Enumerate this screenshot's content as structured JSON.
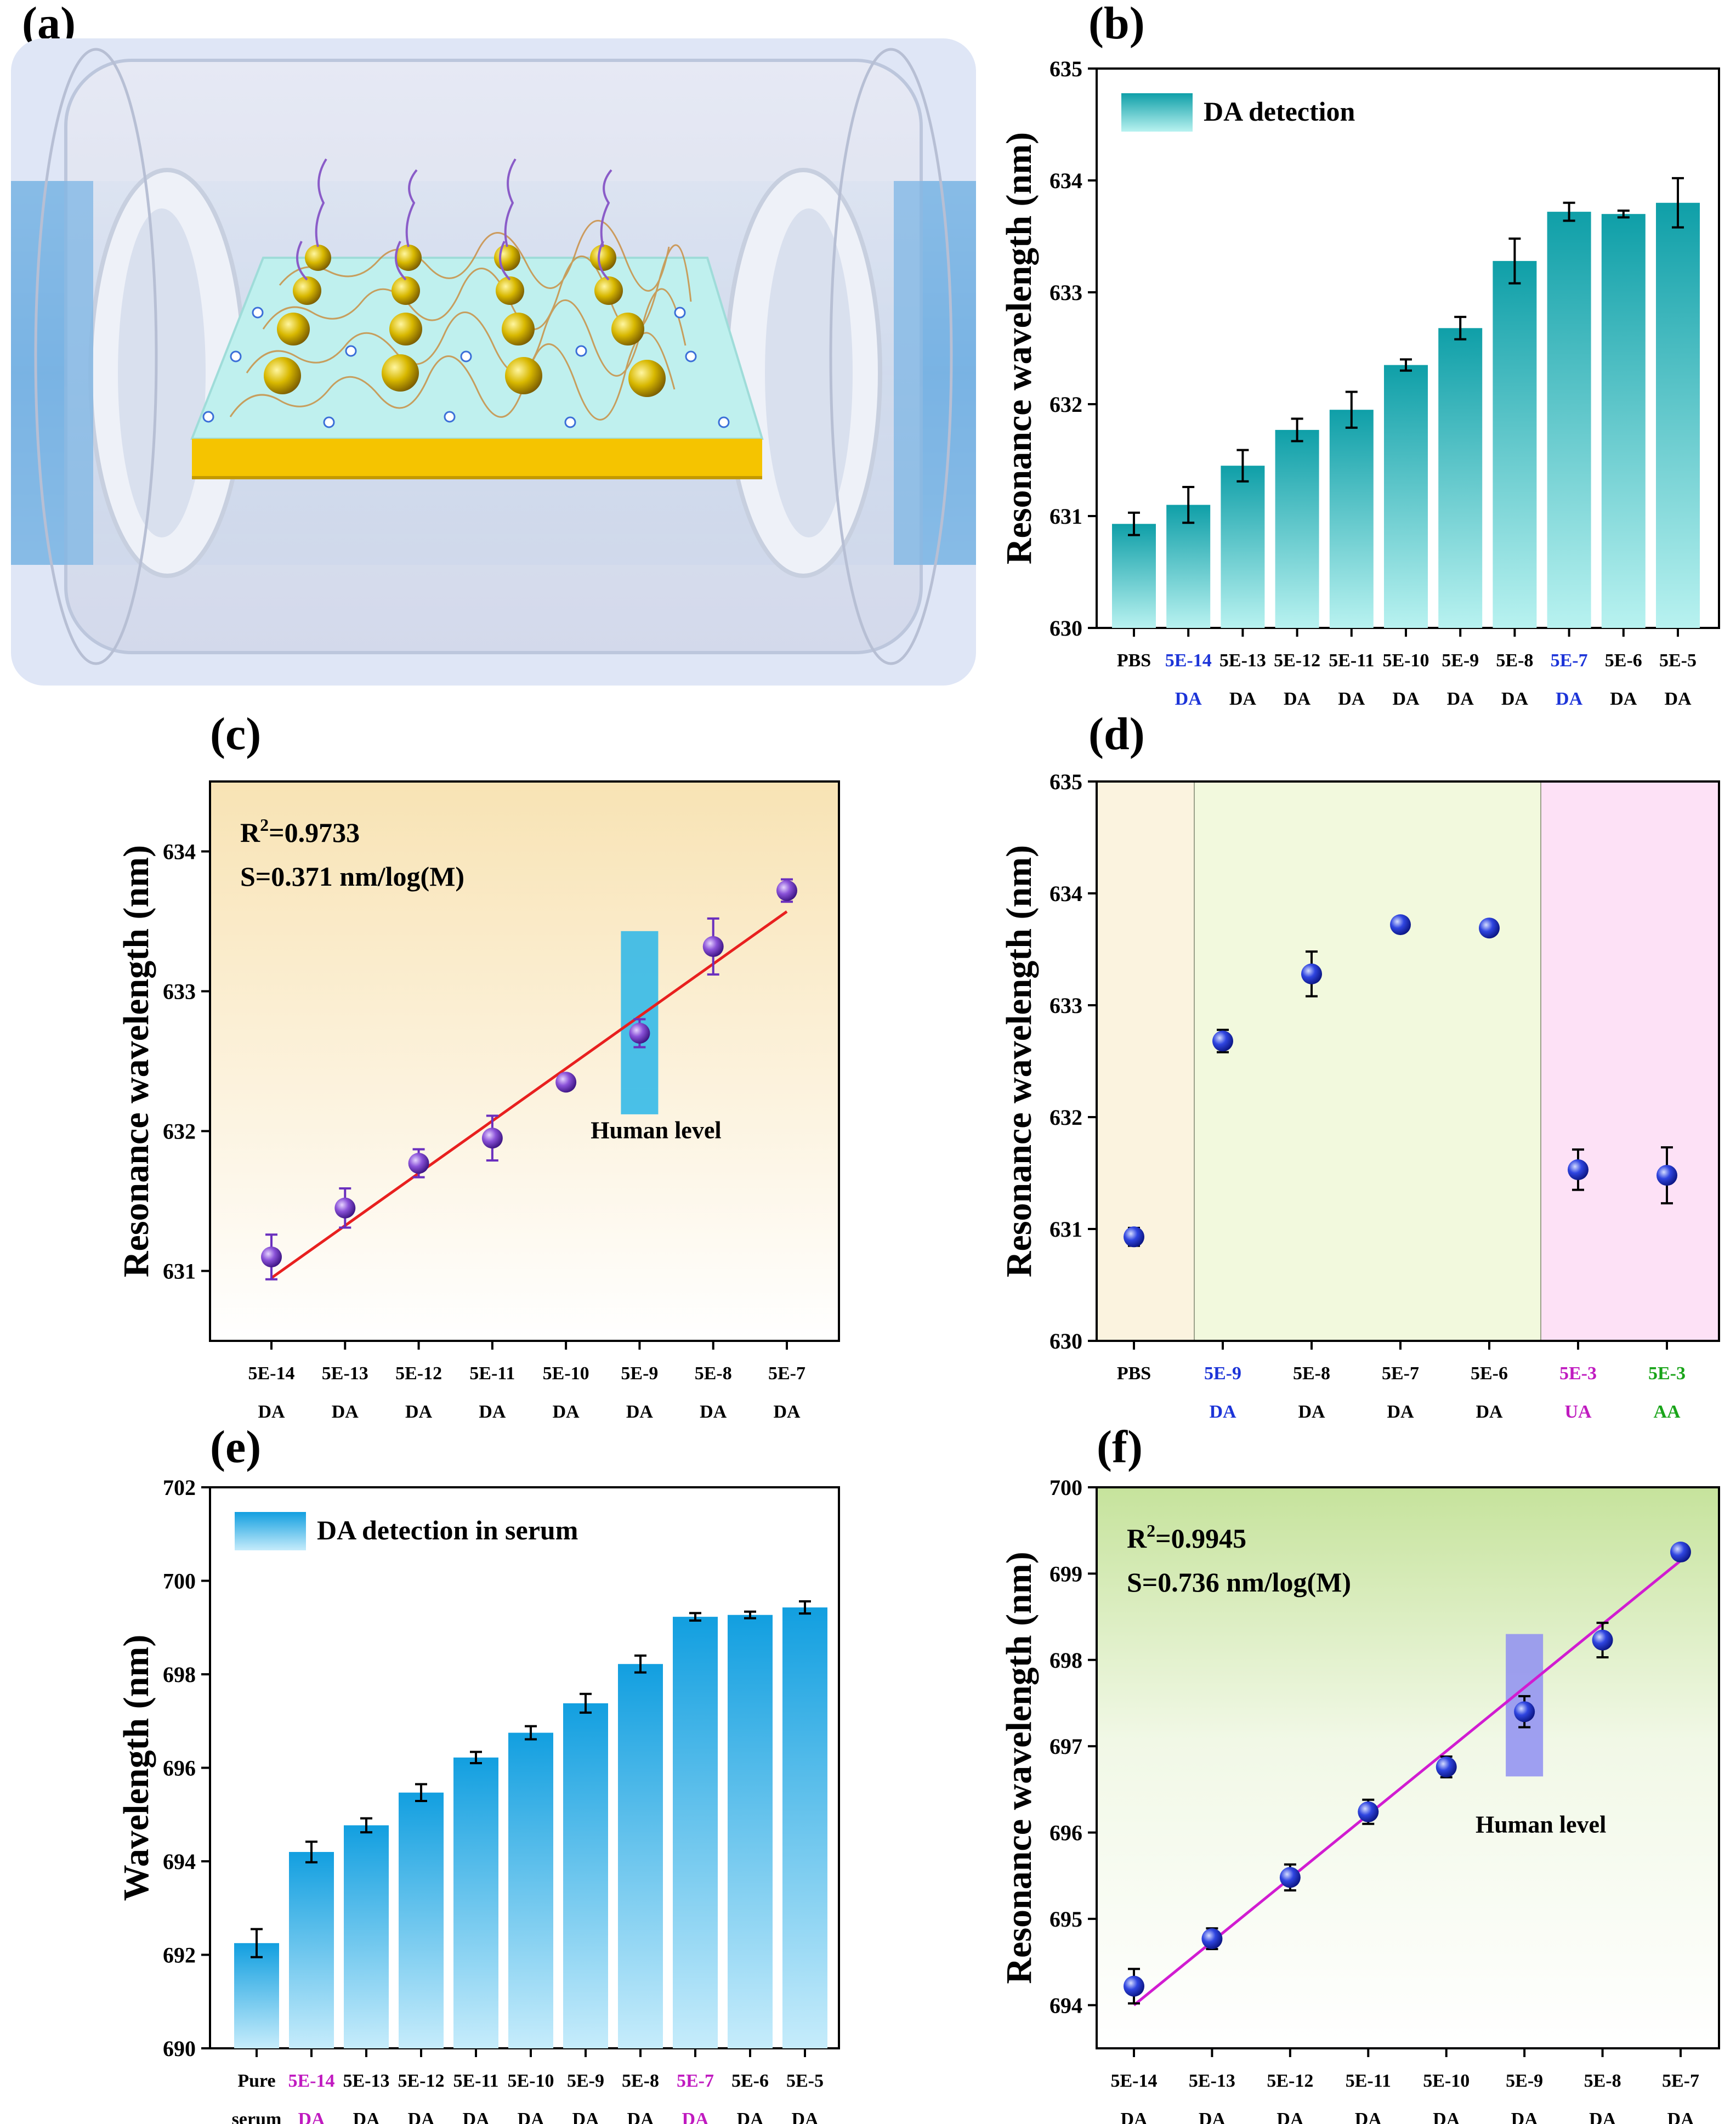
{
  "panels": {
    "a": "(a)",
    "b": "(b)",
    "c": "(c)",
    "d": "(d)",
    "e": "(e)",
    "f": "(f)"
  },
  "colors": {
    "bar_b": "#1aaeb4",
    "bar_e": "#1ea8e3",
    "marker_c": "#6a2fbe",
    "marker_d": "#1a2fd6",
    "fit_c": "#e8201f",
    "fit_f": "#d11cd1",
    "blue_label": "#1c34d8",
    "magenta_label": "#c01bc0",
    "green_label": "#19a419",
    "human_box_c": "#29b6e9",
    "human_box_f": "#8f8ff2"
  },
  "chart_data": [
    {
      "id": "b",
      "type": "bar",
      "ylabel": "Resonance wavelength (nm)",
      "legend": "DA detection",
      "ylim": [
        630,
        635
      ],
      "yticks": [
        "630",
        "631",
        "632",
        "633",
        "634",
        "635"
      ],
      "categories": [
        {
          "line1": "PBS",
          "line2": "",
          "color": "black"
        },
        {
          "line1": "5E-14",
          "line2": "DA",
          "color": "blue"
        },
        {
          "line1": "5E-13",
          "line2": "DA",
          "color": "black"
        },
        {
          "line1": "5E-12",
          "line2": "DA",
          "color": "black"
        },
        {
          "line1": "5E-11",
          "line2": "DA",
          "color": "black"
        },
        {
          "line1": "5E-10",
          "line2": "DA",
          "color": "black"
        },
        {
          "line1": "5E-9",
          "line2": "DA",
          "color": "black"
        },
        {
          "line1": "5E-8",
          "line2": "DA",
          "color": "black"
        },
        {
          "line1": "5E-7",
          "line2": "DA",
          "color": "blue"
        },
        {
          "line1": "5E-6",
          "line2": "DA",
          "color": "black"
        },
        {
          "line1": "5E-5",
          "line2": "DA",
          "color": "black"
        }
      ],
      "values": [
        630.93,
        631.1,
        631.45,
        631.77,
        631.95,
        632.35,
        632.68,
        633.28,
        633.72,
        633.7,
        633.8
      ],
      "errors": [
        0.1,
        0.16,
        0.14,
        0.1,
        0.16,
        0.05,
        0.1,
        0.2,
        0.08,
        0.03,
        0.22
      ]
    },
    {
      "id": "c",
      "type": "scatter",
      "ylabel": "Resonance wavelength (nm)",
      "ylim": [
        630.5,
        634.5
      ],
      "yticks": [
        "631",
        "632",
        "633",
        "634"
      ],
      "ytick_values": [
        631,
        632,
        633,
        634
      ],
      "categories": [
        {
          "line1": "5E-14",
          "line2": "DA",
          "color": "black"
        },
        {
          "line1": "5E-13",
          "line2": "DA",
          "color": "black"
        },
        {
          "line1": "5E-12",
          "line2": "DA",
          "color": "black"
        },
        {
          "line1": "5E-11",
          "line2": "DA",
          "color": "black"
        },
        {
          "line1": "5E-10",
          "line2": "DA",
          "color": "black"
        },
        {
          "line1": "5E-9",
          "line2": "DA",
          "color": "black"
        },
        {
          "line1": "5E-8",
          "line2": "DA",
          "color": "black"
        },
        {
          "line1": "5E-7",
          "line2": "DA",
          "color": "black"
        }
      ],
      "values": [
        631.1,
        631.45,
        631.77,
        631.95,
        632.35,
        632.7,
        633.32,
        633.72
      ],
      "errors": [
        0.16,
        0.14,
        0.1,
        0.16,
        0.05,
        0.1,
        0.2,
        0.08
      ],
      "fit": [
        630.95,
        633.57
      ],
      "r2_prefix": "R",
      "r2_sup": "2",
      "r2_value": "=0.9733",
      "slope": "S=0.371 nm/log(M)",
      "annotation": "Human level",
      "human_box_index": 5,
      "human_box_range": [
        632.12,
        633.43
      ]
    },
    {
      "id": "d",
      "type": "scatter",
      "ylabel": "Resonance wavelength (nm)",
      "ylim": [
        630,
        635
      ],
      "yticks": [
        "630",
        "631",
        "632",
        "633",
        "634",
        "635"
      ],
      "categories": [
        {
          "line1": "PBS",
          "line2": "",
          "color": "black"
        },
        {
          "line1": "5E-9",
          "line2": "DA",
          "color": "blue"
        },
        {
          "line1": "5E-8",
          "line2": "DA",
          "color": "black"
        },
        {
          "line1": "5E-7",
          "line2": "DA",
          "color": "black"
        },
        {
          "line1": "5E-6",
          "line2": "DA",
          "color": "black"
        },
        {
          "line1": "5E-3",
          "line2": "UA",
          "color": "magenta"
        },
        {
          "line1": "5E-3",
          "line2": "AA",
          "color": "green"
        }
      ],
      "values": [
        630.93,
        632.68,
        633.28,
        633.72,
        633.69,
        631.53,
        631.48
      ],
      "errors": [
        0.08,
        0.1,
        0.2,
        0.06,
        0.05,
        0.18,
        0.25
      ]
    },
    {
      "id": "e",
      "type": "bar",
      "ylabel": "Wavelength (nm)",
      "legend": "DA detection in serum",
      "ylim": [
        690,
        702
      ],
      "yticks": [
        "690",
        "692",
        "694",
        "696",
        "698",
        "700",
        "702"
      ],
      "categories": [
        {
          "line1": "Pure",
          "line2": "serum",
          "color": "black"
        },
        {
          "line1": "5E-14",
          "line2": "DA",
          "color": "magenta"
        },
        {
          "line1": "5E-13",
          "line2": "DA",
          "color": "black"
        },
        {
          "line1": "5E-12",
          "line2": "DA",
          "color": "black"
        },
        {
          "line1": "5E-11",
          "line2": "DA",
          "color": "black"
        },
        {
          "line1": "5E-10",
          "line2": "DA",
          "color": "black"
        },
        {
          "line1": "5E-9",
          "line2": "DA",
          "color": "black"
        },
        {
          "line1": "5E-8",
          "line2": "DA",
          "color": "black"
        },
        {
          "line1": "5E-7",
          "line2": "DA",
          "color": "magenta"
        },
        {
          "line1": "5E-6",
          "line2": "DA",
          "color": "black"
        },
        {
          "line1": "5E-5",
          "line2": "DA",
          "color": "black"
        }
      ],
      "values": [
        692.25,
        694.2,
        694.77,
        695.47,
        696.22,
        696.75,
        697.38,
        698.22,
        699.23,
        699.27,
        699.43
      ],
      "errors": [
        0.3,
        0.22,
        0.15,
        0.18,
        0.12,
        0.14,
        0.2,
        0.18,
        0.08,
        0.07,
        0.13
      ]
    },
    {
      "id": "f",
      "type": "scatter",
      "ylabel": "Resonance wavelength (nm)",
      "ylim": [
        693.5,
        700
      ],
      "yticks": [
        "694",
        "695",
        "696",
        "697",
        "698",
        "699",
        "700"
      ],
      "ytick_values": [
        694,
        695,
        696,
        697,
        698,
        699,
        700
      ],
      "categories": [
        {
          "line1": "5E-14",
          "line2": "DA",
          "color": "black"
        },
        {
          "line1": "5E-13",
          "line2": "DA",
          "color": "black"
        },
        {
          "line1": "5E-12",
          "line2": "DA",
          "color": "black"
        },
        {
          "line1": "5E-11",
          "line2": "DA",
          "color": "black"
        },
        {
          "line1": "5E-10",
          "line2": "DA",
          "color": "black"
        },
        {
          "line1": "5E-9",
          "line2": "DA",
          "color": "black"
        },
        {
          "line1": "5E-8",
          "line2": "DA",
          "color": "black"
        },
        {
          "line1": "5E-7",
          "line2": "DA",
          "color": "black"
        }
      ],
      "values": [
        694.22,
        694.77,
        695.48,
        696.24,
        696.76,
        697.4,
        698.23,
        699.25
      ],
      "errors": [
        0.2,
        0.12,
        0.15,
        0.14,
        0.12,
        0.18,
        0.2,
        0.07
      ],
      "fit": [
        694.0,
        699.15
      ],
      "r2_prefix": "R",
      "r2_sup": "2",
      "r2_value": "=0.9945",
      "slope": "S=0.736 nm/log(M)",
      "annotation": "Human level",
      "human_box_index": 5,
      "human_box_range": [
        696.65,
        698.3
      ]
    }
  ]
}
